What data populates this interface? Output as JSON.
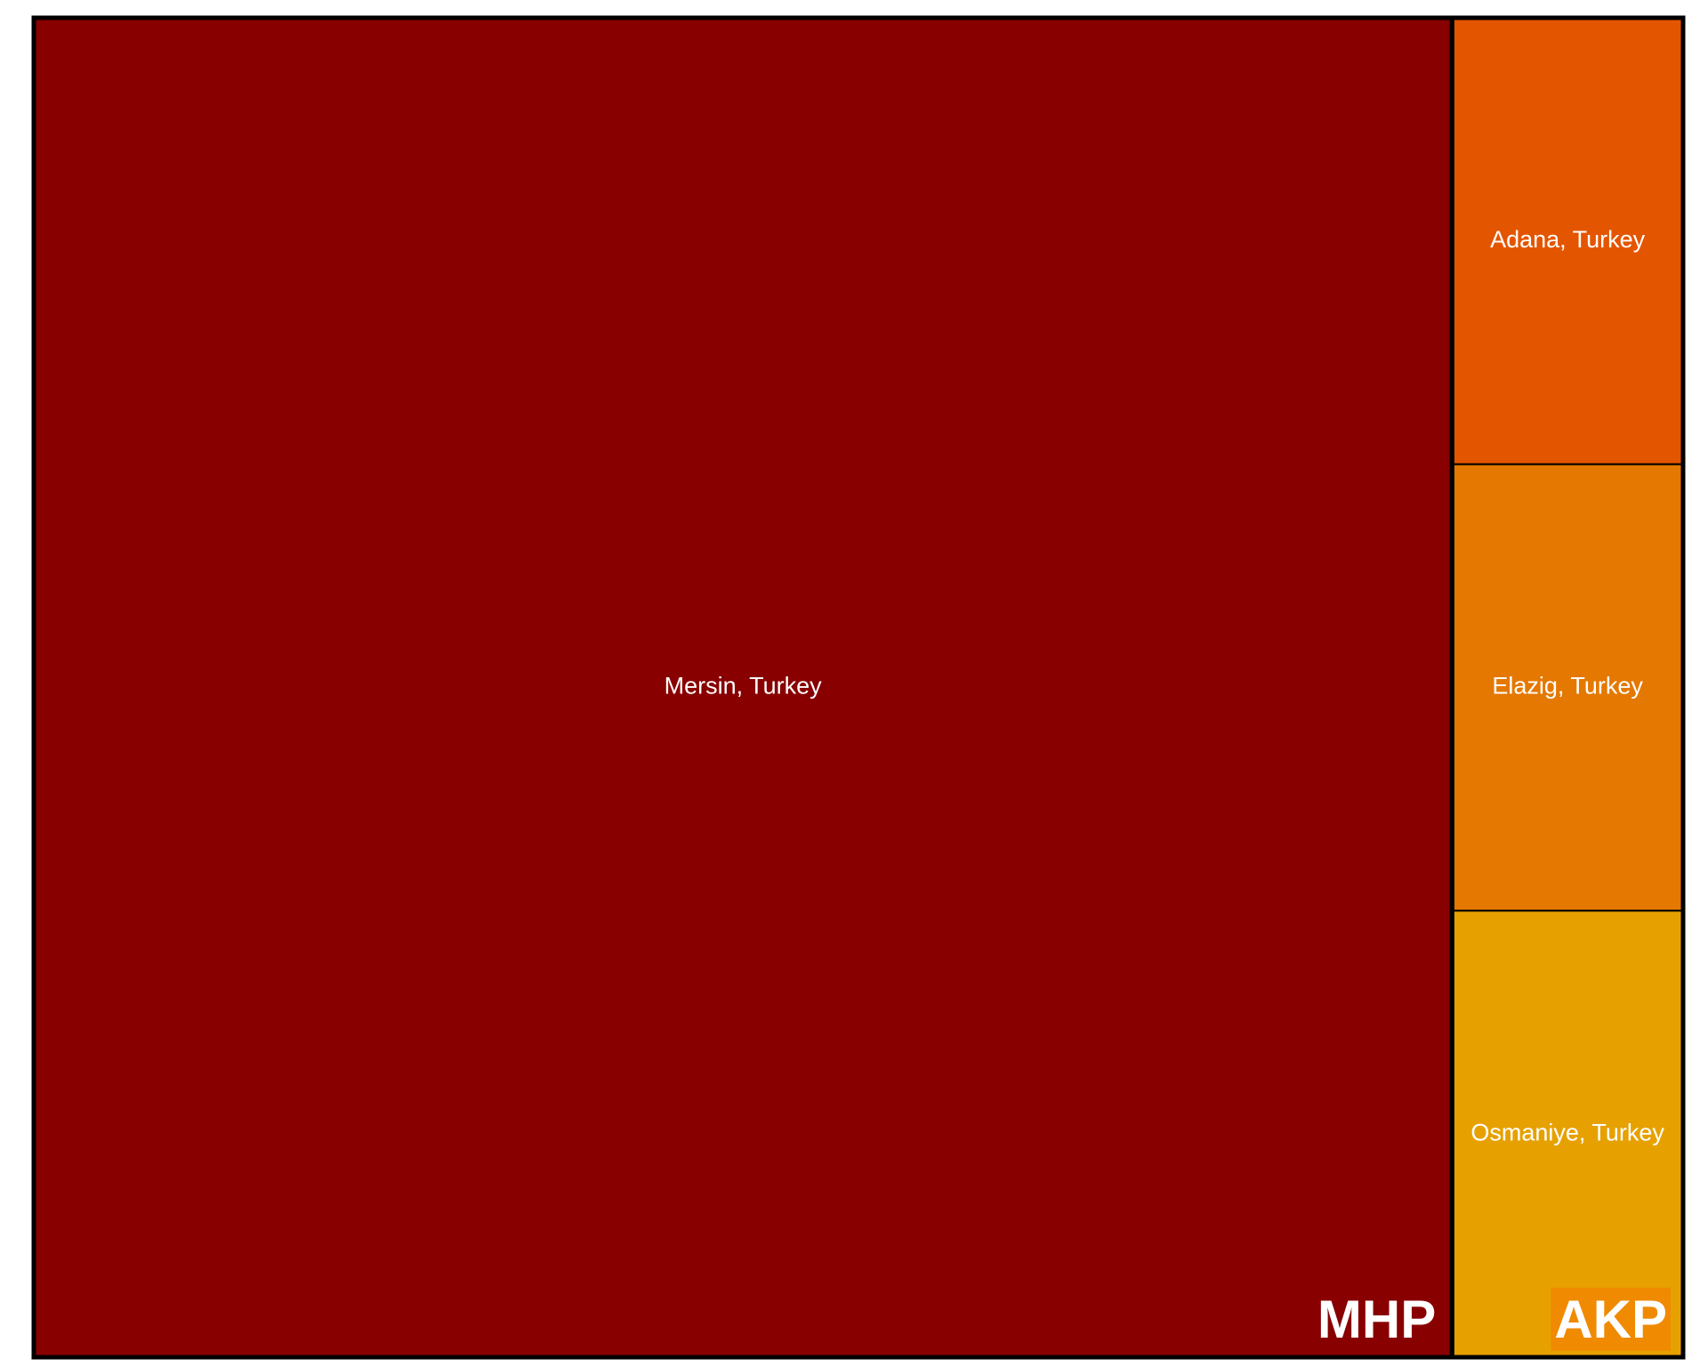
{
  "chart_data": {
    "type": "treemap",
    "groups": [
      {
        "name": "MHP",
        "color": "#880000",
        "label_background": "#880000",
        "items": [
          {
            "name": "Mersin, Turkey",
            "value": 86,
            "color": "#880000"
          }
        ]
      },
      {
        "name": "AKP",
        "color": "#f08a00",
        "label_background": "#f08a00",
        "items": [
          {
            "name": "Adana, Turkey",
            "value": 4.67,
            "color": "#e45500"
          },
          {
            "name": "Elazig, Turkey",
            "value": 4.67,
            "color": "#e47800"
          },
          {
            "name": "Osmaniye, Turkey",
            "value": 4.67,
            "color": "#e6a100"
          }
        ]
      }
    ],
    "border_color": "#000000"
  }
}
